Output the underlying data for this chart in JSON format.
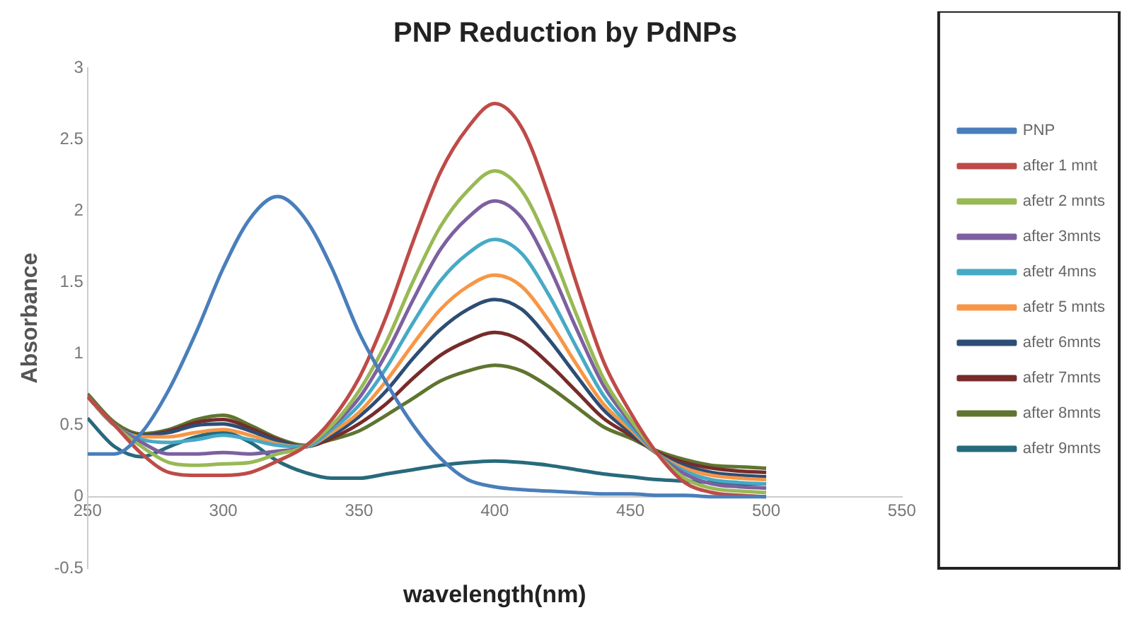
{
  "chart_data": {
    "type": "line",
    "title": "PNP Reduction by PdNPs",
    "xlabel": "wavelength(nm)",
    "ylabel": "Absorbance",
    "x": [
      250,
      260,
      270,
      280,
      290,
      300,
      310,
      320,
      330,
      340,
      350,
      360,
      370,
      380,
      390,
      400,
      410,
      420,
      430,
      440,
      450,
      460,
      470,
      480,
      490,
      500
    ],
    "xlim": [
      250,
      550
    ],
    "xticks": [
      250,
      300,
      350,
      400,
      450,
      500,
      550
    ],
    "ylim": [
      -0.5,
      3
    ],
    "yticks": [
      -0.5,
      0,
      0.5,
      1,
      1.5,
      2,
      2.5,
      3
    ],
    "grid": false,
    "legend": "right",
    "marker": "none",
    "line_style": "solid",
    "series": [
      {
        "name": "PNP",
        "color": "#4a7ebb",
        "values": [
          0.3,
          0.3,
          0.45,
          0.75,
          1.15,
          1.6,
          1.95,
          2.1,
          1.95,
          1.6,
          1.15,
          0.8,
          0.5,
          0.27,
          0.12,
          0.07,
          0.05,
          0.04,
          0.03,
          0.02,
          0.02,
          0.01,
          0.01,
          0,
          0,
          0
        ]
      },
      {
        "name": "after 1 mnt",
        "color": "#be4b48",
        "values": [
          0.7,
          0.5,
          0.3,
          0.17,
          0.15,
          0.15,
          0.17,
          0.25,
          0.35,
          0.54,
          0.83,
          1.26,
          1.79,
          2.27,
          2.58,
          2.75,
          2.58,
          2.1,
          1.5,
          0.95,
          0.59,
          0.3,
          0.1,
          0.03,
          0.01,
          0
        ]
      },
      {
        "name": "afetr 2 mnts",
        "color": "#98b954",
        "values": [
          0.7,
          0.5,
          0.35,
          0.24,
          0.22,
          0.23,
          0.24,
          0.3,
          0.35,
          0.5,
          0.74,
          1.08,
          1.51,
          1.89,
          2.14,
          2.28,
          2.14,
          1.76,
          1.28,
          0.83,
          0.54,
          0.3,
          0.13,
          0.06,
          0.04,
          0.03
        ]
      },
      {
        "name": "after 3mnts",
        "color": "#7d60a0",
        "values": [
          0.7,
          0.5,
          0.38,
          0.3,
          0.3,
          0.31,
          0.3,
          0.32,
          0.35,
          0.49,
          0.69,
          1.0,
          1.38,
          1.73,
          1.95,
          2.07,
          1.95,
          1.61,
          1.18,
          0.78,
          0.52,
          0.3,
          0.16,
          0.09,
          0.07,
          0.06
        ]
      },
      {
        "name": "afetr 4mns",
        "color": "#46aac5",
        "values": [
          0.7,
          0.5,
          0.4,
          0.38,
          0.4,
          0.43,
          0.4,
          0.36,
          0.35,
          0.47,
          0.64,
          0.9,
          1.22,
          1.51,
          1.7,
          1.8,
          1.7,
          1.41,
          1.05,
          0.71,
          0.49,
          0.3,
          0.18,
          0.12,
          0.1,
          0.09
        ]
      },
      {
        "name": "afetr 5 mnts",
        "color": "#f79646",
        "values": [
          0.7,
          0.5,
          0.42,
          0.42,
          0.45,
          0.47,
          0.43,
          0.37,
          0.35,
          0.45,
          0.59,
          0.81,
          1.07,
          1.31,
          1.47,
          1.55,
          1.47,
          1.23,
          0.93,
          0.65,
          0.47,
          0.3,
          0.2,
          0.15,
          0.13,
          0.12
        ]
      },
      {
        "name": "afetr 6mnts",
        "color": "#2c4d75",
        "values": [
          0.7,
          0.5,
          0.43,
          0.45,
          0.5,
          0.51,
          0.46,
          0.39,
          0.35,
          0.43,
          0.56,
          0.74,
          0.97,
          1.17,
          1.31,
          1.38,
          1.31,
          1.1,
          0.85,
          0.61,
          0.45,
          0.3,
          0.22,
          0.17,
          0.15,
          0.14
        ]
      },
      {
        "name": "afetr 7mnts",
        "color": "#772c2a",
        "values": [
          0.7,
          0.5,
          0.43,
          0.46,
          0.52,
          0.54,
          0.48,
          0.4,
          0.35,
          0.41,
          0.51,
          0.65,
          0.83,
          0.99,
          1.09,
          1.15,
          1.09,
          0.93,
          0.74,
          0.55,
          0.43,
          0.31,
          0.24,
          0.2,
          0.18,
          0.17
        ]
      },
      {
        "name": "after 8mnts",
        "color": "#5f7530",
        "values": [
          0.72,
          0.52,
          0.44,
          0.47,
          0.54,
          0.57,
          0.5,
          0.41,
          0.36,
          0.4,
          0.46,
          0.57,
          0.69,
          0.81,
          0.88,
          0.92,
          0.88,
          0.77,
          0.63,
          0.49,
          0.41,
          0.32,
          0.26,
          0.22,
          0.21,
          0.2
        ]
      },
      {
        "name": "afetr 9mnts",
        "color": "#276a7c",
        "values": [
          0.55,
          0.35,
          0.28,
          0.35,
          0.42,
          0.45,
          0.38,
          0.25,
          0.17,
          0.13,
          0.13,
          0.16,
          0.19,
          0.22,
          0.24,
          0.25,
          0.24,
          0.22,
          0.19,
          0.16,
          0.14,
          0.12,
          0.11,
          0.1,
          0.09,
          0.09
        ]
      }
    ]
  }
}
